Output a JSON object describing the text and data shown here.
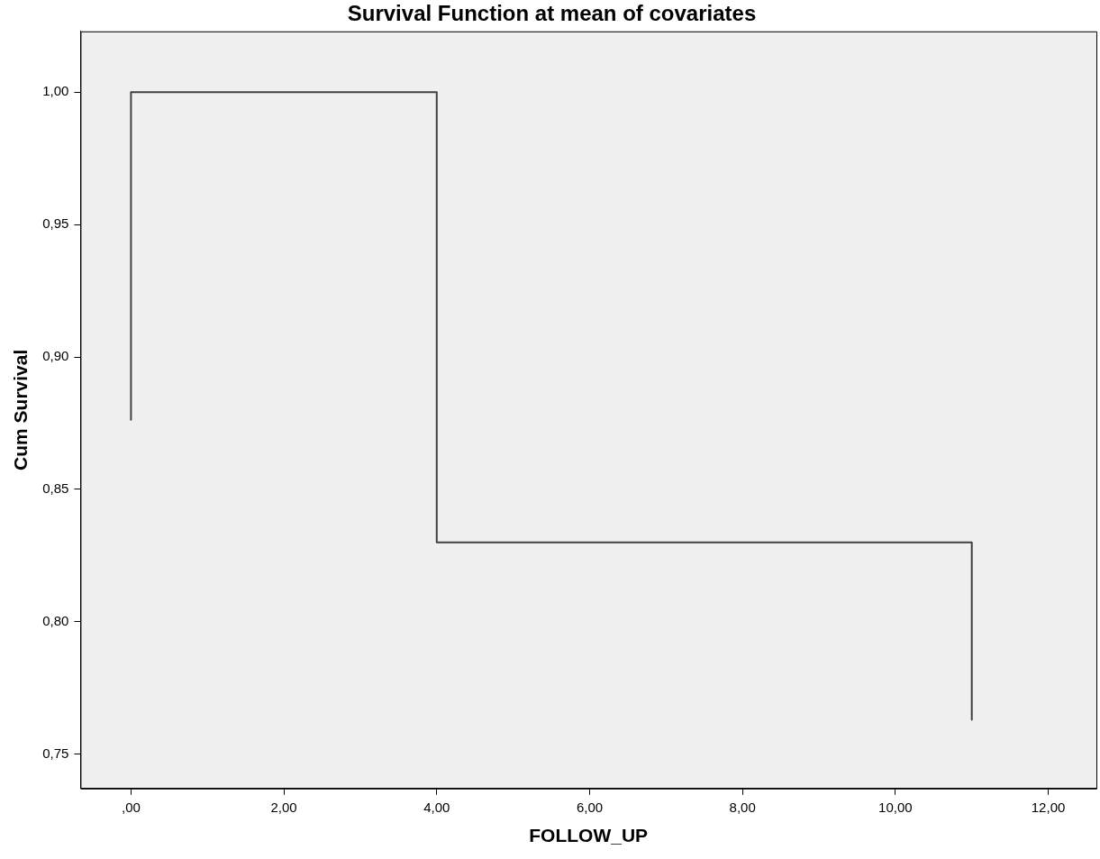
{
  "chart_data": {
    "type": "line",
    "title": "Survival Function at mean of covariates",
    "xlabel": "FOLLOW_UP",
    "ylabel": "Cum Survival",
    "x": [
      0,
      0,
      4,
      4,
      11,
      11
    ],
    "series": [
      {
        "color": "#404040",
        "values": [
          0.876,
          1,
          1,
          0.83,
          0.83,
          0.763
        ]
      }
    ],
    "xlim": [
      -0.66,
      12.63
    ],
    "ylim": [
      0.737,
      1.023
    ],
    "xticks": [
      {
        "value": 0,
        "label": ",00"
      },
      {
        "value": 2,
        "label": "2,00"
      },
      {
        "value": 4,
        "label": "4,00"
      },
      {
        "value": 6,
        "label": "6,00"
      },
      {
        "value": 8,
        "label": "8,00"
      },
      {
        "value": 10,
        "label": "10,00"
      },
      {
        "value": 12,
        "label": "12,00"
      }
    ],
    "yticks": [
      {
        "value": 0.75,
        "label": "0,75"
      },
      {
        "value": 0.8,
        "label": "0,80"
      },
      {
        "value": 0.85,
        "label": "0,85"
      },
      {
        "value": 0.9,
        "label": "0,90"
      },
      {
        "value": 0.95,
        "label": "0,95"
      },
      {
        "value": 1,
        "label": "1,00"
      }
    ],
    "marker": "none",
    "line_style": "solid"
  }
}
